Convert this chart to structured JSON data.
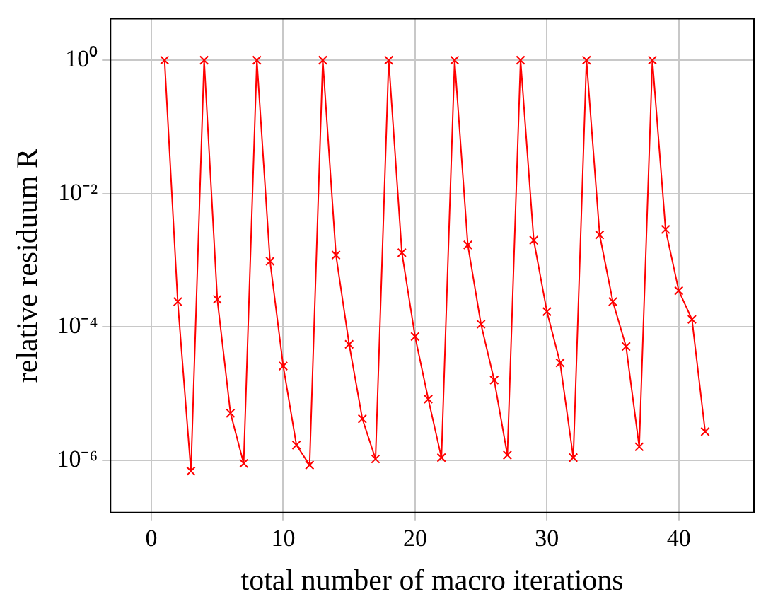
{
  "chart_data": {
    "type": "line",
    "xlabel": "total number of macro iterations",
    "ylabel": "relative residuum R",
    "log": "y",
    "grid": true,
    "legend": false,
    "marker": "cross",
    "line_style": "solid",
    "xlim": [
      -3.1,
      45.7
    ],
    "xticks": [
      0,
      10,
      20,
      30,
      40
    ],
    "ylim": [
      1.65e-07,
      4.2
    ],
    "yticks": [
      {
        "value": 1,
        "label": "10⁰"
      },
      {
        "value": 0.01,
        "label": "10⁻²"
      },
      {
        "value": 0.0001,
        "label": "10⁻⁴"
      },
      {
        "value": 1e-06,
        "label": "10⁻⁶"
      }
    ],
    "x": [
      1,
      2,
      3,
      4,
      5,
      6,
      7,
      8,
      9,
      10,
      11,
      12,
      13,
      14,
      15,
      16,
      17,
      18,
      19,
      20,
      21,
      22,
      23,
      24,
      25,
      26,
      27,
      28,
      29,
      30,
      31,
      32,
      33,
      34,
      35,
      36,
      37,
      38,
      39,
      40,
      41,
      42
    ],
    "series": [
      {
        "color": "#ff0000",
        "values": [
          1,
          0.00024,
          6.9e-07,
          1,
          0.00026,
          5.1e-06,
          9e-07,
          1,
          0.00097,
          2.6e-05,
          1.7e-06,
          8.5e-07,
          1,
          0.0012,
          5.5e-05,
          4.2e-06,
          1.05e-06,
          1,
          0.0013,
          7.2e-05,
          8.3e-06,
          1.1e-06,
          1,
          0.0017,
          0.00011,
          1.6e-05,
          1.2e-06,
          1,
          0.002,
          0.00017,
          2.9e-05,
          1.1e-06,
          1,
          0.0024,
          0.00024,
          5.1e-05,
          1.6e-06,
          1,
          0.0029,
          0.00035,
          0.00013,
          2.7e-06
        ]
      }
    ]
  }
}
